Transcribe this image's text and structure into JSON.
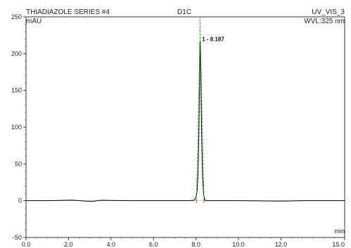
{
  "chart_data": {
    "type": "line",
    "header": {
      "left": "THIADIAZOLE SERIES #4",
      "center": "D1C",
      "right": "UV_VIS_3",
      "right2": "WVL:325 nm"
    },
    "ylabel": "mAU",
    "xlabel": "min",
    "xlim": [
      0.0,
      15.0
    ],
    "ylim": [
      -50,
      250
    ],
    "xticks": [
      0.0,
      2.0,
      4.0,
      6.0,
      8.0,
      10.0,
      12.0,
      15.0
    ],
    "xtick_labels": [
      "0.0",
      "2.0",
      "4.0",
      "6.0",
      "8.0",
      "10.0",
      "12.0",
      "15.0"
    ],
    "yticks": [
      -50,
      0,
      50,
      100,
      150,
      200,
      250
    ],
    "ytick_labels": [
      "-50",
      "0",
      "50",
      "100",
      "150",
      "200",
      "250"
    ],
    "grid": false,
    "series": [
      {
        "color": "#000000",
        "x": [
          0.0,
          1.0,
          1.8,
          2.2,
          2.8,
          3.1,
          3.5,
          4.2,
          5.0,
          6.0,
          7.0,
          7.6,
          7.9,
          8.0,
          8.06,
          8.1,
          8.14,
          8.17,
          8.187,
          8.2,
          8.23,
          8.27,
          8.31,
          8.36,
          8.42,
          8.5,
          9.0,
          10.0,
          12.0,
          13.0,
          15.0
        ],
        "values": [
          0,
          0,
          0.5,
          0.8,
          -0.5,
          -1.0,
          0.6,
          0.3,
          0,
          0,
          0,
          0,
          0.5,
          4,
          15,
          40,
          95,
          170,
          216,
          214,
          160,
          85,
          32,
          8,
          1,
          0,
          0,
          0,
          -0.5,
          0,
          0
        ]
      },
      {
        "color": "#22aa22",
        "style": "dashed",
        "x": [
          8.02,
          8.187,
          8.187,
          8.38
        ],
        "values": [
          0,
          216,
          250,
          0
        ]
      }
    ],
    "peak_annotation": {
      "x": 8.187,
      "y": 216,
      "text": "1 - 8.187"
    }
  }
}
